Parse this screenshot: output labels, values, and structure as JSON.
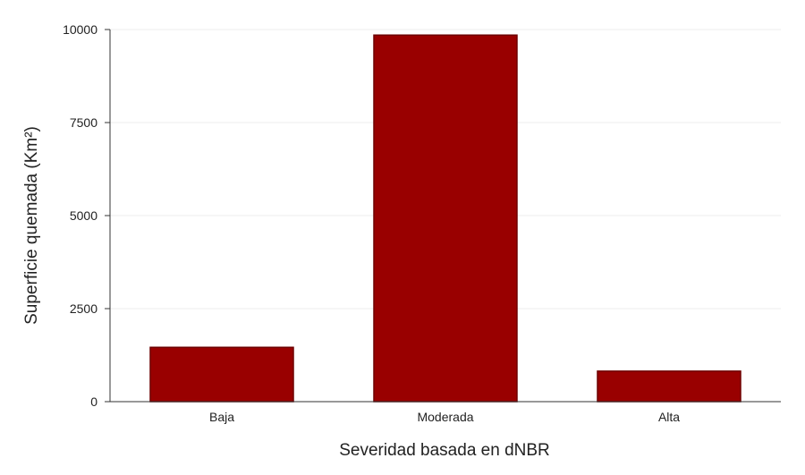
{
  "chart_data": {
    "type": "bar",
    "title": "",
    "xlabel": "Severidad basada en dNBR",
    "ylabel": "Superficie quemada (Km²)",
    "categories": [
      "Baja",
      "Moderada",
      "Alta"
    ],
    "values": [
      1460,
      9850,
      820
    ],
    "ylim": [
      0,
      10000
    ],
    "yticks": [
      0,
      2500,
      5000,
      7500,
      10000
    ],
    "grid": true,
    "legend": "none",
    "colors": {
      "bar_fill": "#990000",
      "bar_stroke": "#6e0000",
      "axis": "#333333",
      "grid": "#eeeeee"
    }
  }
}
